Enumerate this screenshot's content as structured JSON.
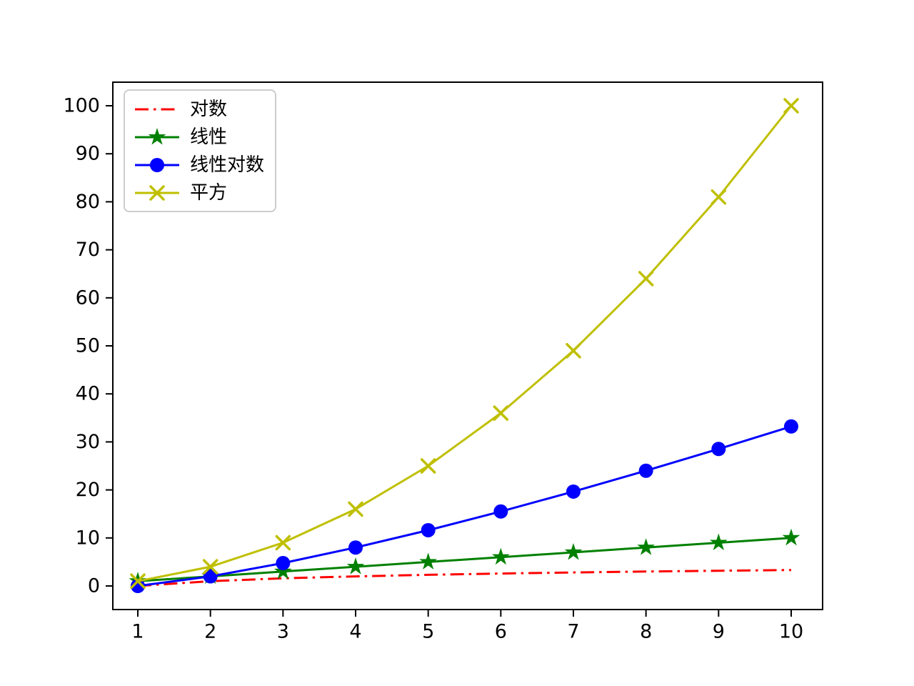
{
  "figure": {
    "background": "#ffffff",
    "axes_edge_color": "#000000",
    "tick_label_color": "#000000"
  },
  "chart_data": {
    "type": "line",
    "title": "",
    "xlabel": "",
    "ylabel": "",
    "x": [
      1,
      2,
      3,
      4,
      5,
      6,
      7,
      8,
      9,
      10
    ],
    "xticks": [
      1,
      2,
      3,
      4,
      5,
      6,
      7,
      8,
      9,
      10
    ],
    "yticks": [
      0,
      10,
      20,
      30,
      40,
      50,
      60,
      70,
      80,
      90,
      100
    ],
    "xlim": [
      0.55,
      10.45
    ],
    "ylim": [
      -5,
      105
    ],
    "grid": false,
    "legend_position": "upper left",
    "series": [
      {
        "name": "对数",
        "color": "#ff0000",
        "linestyle": "dashdot",
        "marker": "none",
        "values": [
          0,
          1,
          1.585,
          2,
          2.322,
          2.585,
          2.807,
          3,
          3.17,
          3.322
        ]
      },
      {
        "name": "线性",
        "color": "#008000",
        "linestyle": "solid",
        "marker": "star",
        "values": [
          1,
          2,
          3,
          4,
          5,
          6,
          7,
          8,
          9,
          10
        ]
      },
      {
        "name": "线性对数",
        "color": "#0000ff",
        "linestyle": "solid",
        "marker": "circle",
        "values": [
          0,
          2,
          4.755,
          8,
          11.61,
          15.51,
          19.651,
          24,
          28.529,
          33.219
        ]
      },
      {
        "name": "平方",
        "color": "#bfbf00",
        "linestyle": "solid",
        "marker": "x",
        "values": [
          1,
          4,
          9,
          16,
          25,
          36,
          49,
          64,
          81,
          100
        ]
      }
    ]
  }
}
